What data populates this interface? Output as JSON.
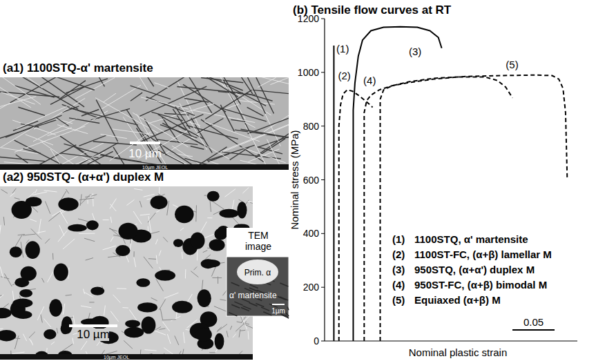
{
  "panels": [
    {
      "title": "(a1) 1100STQ-α' martensite",
      "scale_bar": "10 µm",
      "caption": "10µm  JEOL"
    },
    {
      "title": "(a2) 950STQ- (α+α') duplex M",
      "scale_bar": "10 µm",
      "caption": "10µm  JEOL",
      "inset": {
        "title": "TEM image",
        "labels": [
          "Prim. α",
          "α' martensite"
        ],
        "scale_bar": "1µm"
      }
    }
  ],
  "chart_data": {
    "type": "line",
    "title": "(b) Tensile flow curves at RT",
    "x_label": "Nominal plastic strain",
    "y_label": "Nominal stress (MPa)",
    "xlim": [
      0,
      0.3
    ],
    "ylim": [
      0,
      1200
    ],
    "yticks": [
      0,
      200,
      400,
      600,
      800,
      1000,
      1200
    ],
    "tick_labels": "y",
    "legend": "lower right",
    "scale_bar": 0.05,
    "series": [
      {
        "label": "(1)",
        "name": "1100STQ, α' martensite",
        "color": "#000000",
        "line_style": "solid",
        "x": [
          0.011,
          0.011
        ],
        "values": [
          0,
          1100
        ]
      },
      {
        "label": "(2)",
        "name": "1100ST-FC, (α+β) lamellar M",
        "color": "#000000",
        "line_style": "dashed",
        "x": [
          0.017,
          0.017,
          0.019,
          0.022,
          0.027,
          0.033,
          0.04,
          0.05,
          0.057
        ],
        "values": [
          0,
          800,
          880,
          920,
          935,
          930,
          915,
          890,
          870
        ]
      },
      {
        "label": "(3)",
        "name": "950STQ, (α+α') duplex M",
        "color": "#000000",
        "line_style": "solid",
        "x": [
          0.034,
          0.034,
          0.036,
          0.04,
          0.045,
          0.055,
          0.07,
          0.09,
          0.11,
          0.125,
          0.135,
          0.139
        ],
        "values": [
          0,
          860,
          960,
          1060,
          1120,
          1155,
          1168,
          1170,
          1168,
          1155,
          1130,
          1090
        ]
      },
      {
        "label": "(4)",
        "name": "950ST-FC, (α+β) bimodal M",
        "color": "#000000",
        "line_style": "dashed",
        "x": [
          0.047,
          0.047,
          0.05,
          0.055,
          0.065,
          0.08,
          0.1,
          0.13,
          0.16,
          0.19,
          0.205,
          0.215,
          0.223
        ],
        "values": [
          0,
          850,
          895,
          915,
          935,
          950,
          962,
          975,
          983,
          983,
          970,
          945,
          905
        ]
      },
      {
        "label": "(5)",
        "name": "Equiaxed (α+β) M",
        "color": "#000000",
        "line_style": "dashed",
        "x": [
          0.066,
          0.066,
          0.07,
          0.08,
          0.1,
          0.13,
          0.17,
          0.21,
          0.25,
          0.27,
          0.278,
          0.283,
          0.286,
          0.288
        ],
        "values": [
          0,
          900,
          935,
          950,
          965,
          978,
          985,
          988,
          990,
          988,
          975,
          940,
          850,
          600
        ]
      }
    ],
    "annotations": [
      {
        "text": "(1)",
        "x": 0.014,
        "y": 1075
      },
      {
        "text": "(2)",
        "x": 0.016,
        "y": 975
      },
      {
        "text": "(3)",
        "x": 0.1,
        "y": 1065
      },
      {
        "text": "(4)",
        "x": 0.046,
        "y": 955
      },
      {
        "text": "(5)",
        "x": 0.215,
        "y": 1015
      }
    ]
  }
}
